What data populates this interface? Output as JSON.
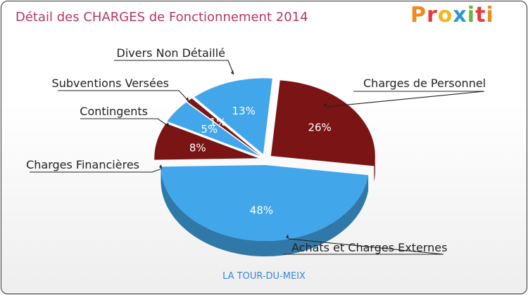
{
  "header": {
    "title": "Détail des CHARGES de Fonctionnement 2014",
    "logo_text": "Proxiti"
  },
  "footer": {
    "commune": "LA TOUR-DU-MEIX"
  },
  "colors": {
    "blue": "#42a6ea",
    "red": "#7b1414",
    "title": "#b8375f",
    "footer": "#3a86d7"
  },
  "chart_data": {
    "type": "pie",
    "title": "Détail des CHARGES de Fonctionnement 2014",
    "slices": [
      {
        "label": "Charges de Personnel",
        "value": 26,
        "display": "26%",
        "color": "#7b1414"
      },
      {
        "label": "Achats et Charges Externes",
        "value": 48,
        "display": "48%",
        "color": "#42a6ea"
      },
      {
        "label": "Charges Financières",
        "value": 8,
        "display": "8%",
        "color": "#7b1414"
      },
      {
        "label": "Contingents",
        "value": 5,
        "display": "5%",
        "color": "#42a6ea"
      },
      {
        "label": "Subventions Versées",
        "value": 1,
        "display": "1%",
        "color": "#7b1414"
      },
      {
        "label": "Divers Non Détaillé",
        "value": 13,
        "display": "13%",
        "color": "#42a6ea"
      }
    ]
  }
}
